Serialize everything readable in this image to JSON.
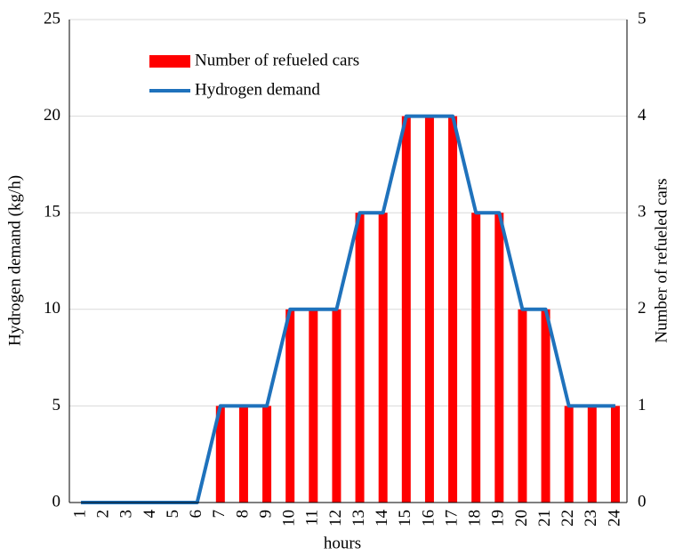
{
  "chart_data": {
    "type": "bar",
    "categories": [
      "1",
      "2",
      "3",
      "4",
      "5",
      "6",
      "7",
      "8",
      "9",
      "10",
      "11",
      "12",
      "13",
      "14",
      "15",
      "16",
      "17",
      "18",
      "19",
      "20",
      "21",
      "22",
      "23",
      "24"
    ],
    "series": [
      {
        "name": "Number of refueled cars",
        "type": "bar",
        "axis": "y2",
        "color": "#ff0000",
        "values": [
          0,
          0,
          0,
          0,
          0,
          0,
          1,
          1,
          1,
          2,
          2,
          2,
          3,
          3,
          4,
          4,
          4,
          3,
          3,
          2,
          2,
          1,
          1,
          1
        ]
      },
      {
        "name": "Hydrogen demand",
        "type": "line",
        "color": "#1f72bc",
        "values": [
          0,
          0,
          0,
          0,
          0,
          0,
          5,
          5,
          5,
          10,
          10,
          10,
          15,
          15,
          20,
          20,
          20,
          15,
          15,
          10,
          10,
          5,
          5,
          5
        ]
      }
    ],
    "x_label": "hours",
    "y_label": "Hydrogen demand (kg/h)",
    "y2_label": "Number of  refueled cars",
    "ylim": [
      0,
      25
    ],
    "yticks": [
      0,
      5,
      10,
      15,
      20,
      25
    ],
    "y2lim": [
      0,
      5
    ],
    "y2ticks": [
      0,
      1,
      2,
      3,
      4,
      5
    ],
    "grid": true
  }
}
